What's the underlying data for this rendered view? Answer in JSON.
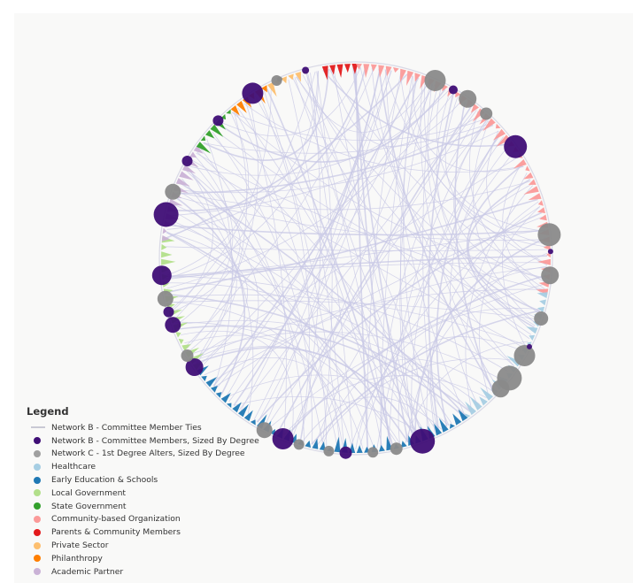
{
  "legend": {
    "title": "Legend",
    "items": [
      {
        "label": "Network B - Committee Member Ties",
        "symbol": "line",
        "color": "#c9c9d4"
      },
      {
        "label": "Network B - Committee Members, Sized By Degree",
        "symbol": "dot",
        "color": "#3f0e76"
      },
      {
        "label": "Network C - 1st Degree Alters, Sized By Degree",
        "symbol": "dot",
        "color": "#a0a0a0"
      },
      {
        "label": "Healthcare",
        "symbol": "dot",
        "color": "#a6cee3"
      },
      {
        "label": "Early Education & Schools",
        "symbol": "dot",
        "color": "#1f78b4"
      },
      {
        "label": "Local Government",
        "symbol": "dot",
        "color": "#b2df8a"
      },
      {
        "label": "State Government",
        "symbol": "dot",
        "color": "#33a02c"
      },
      {
        "label": "Community-based Organization",
        "symbol": "dot",
        "color": "#fb9a99"
      },
      {
        "label": "Parents & Community Members",
        "symbol": "dot",
        "color": "#e31a1c"
      },
      {
        "label": "Private Sector",
        "symbol": "dot",
        "color": "#fdbf6f"
      },
      {
        "label": "Philanthropy",
        "symbol": "dot",
        "color": "#ff7f00"
      },
      {
        "label": "Academic Partner",
        "symbol": "dot",
        "color": "#cab2d6"
      }
    ]
  },
  "network": {
    "edge_color": "#c8c8e6",
    "member_color": "#3f0e76",
    "alter_color": "#8a8a8a"
  }
}
